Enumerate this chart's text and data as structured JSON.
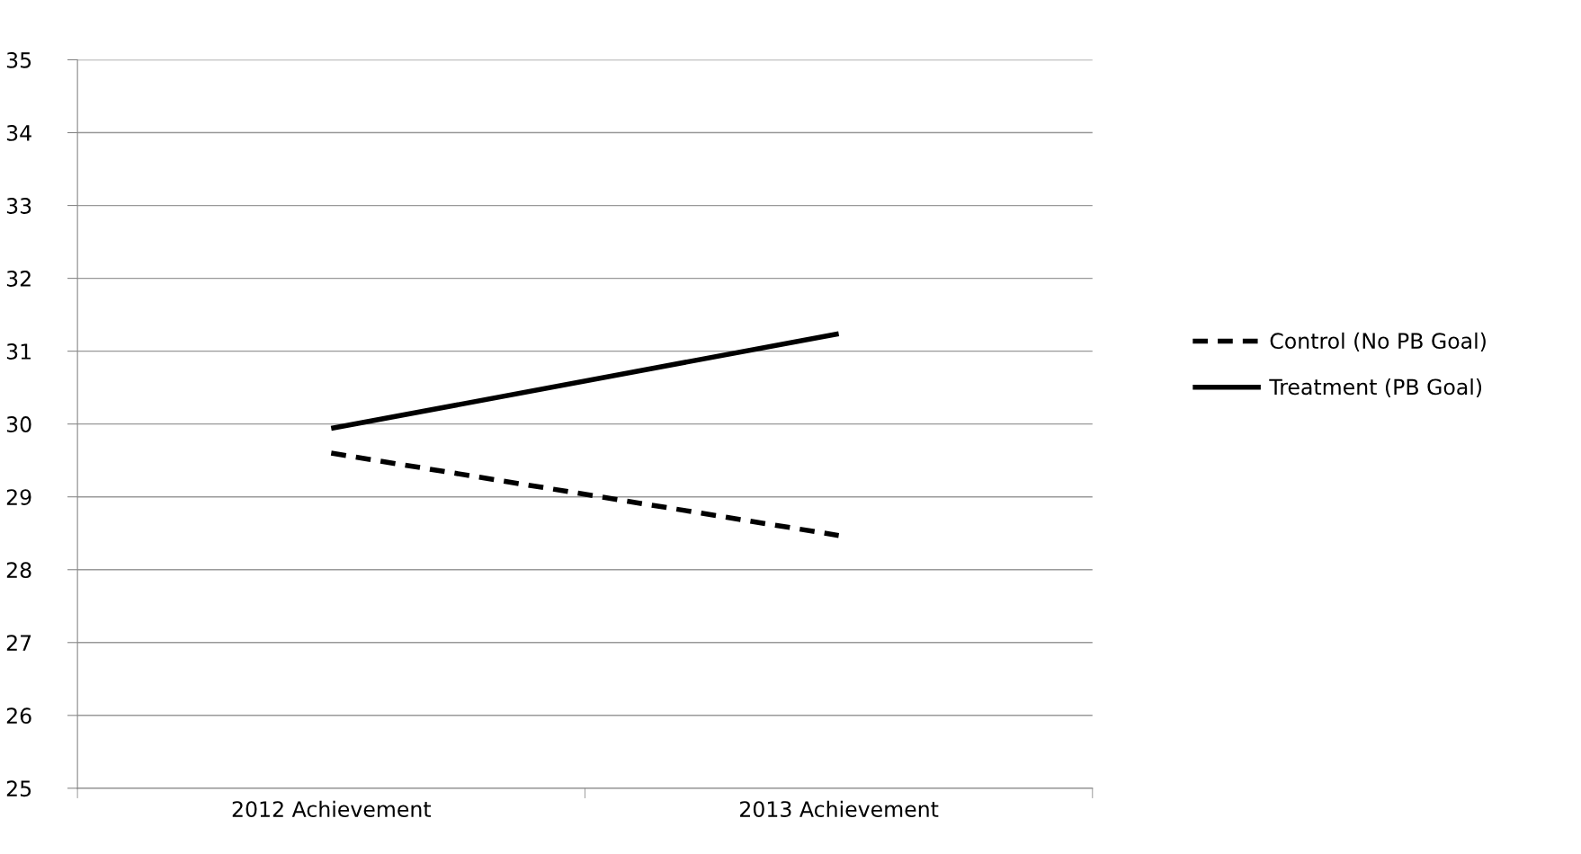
{
  "chart_data": {
    "type": "line",
    "categories": [
      "2012 Achievement",
      "2013 Achievement"
    ],
    "series": [
      {
        "name": "Control (No PB Goal)",
        "color": "#000000",
        "values": [
          29.6,
          28.47
        ],
        "line_style": "dashed"
      },
      {
        "name": "Treatment (PB Goal)",
        "color": "#000000",
        "values": [
          29.94,
          31.24
        ],
        "line_style": "solid"
      }
    ],
    "ylim": [
      25,
      35
    ],
    "yticks": [
      25,
      26,
      27,
      28,
      29,
      30,
      31,
      32,
      33,
      34,
      35
    ],
    "grid": "y",
    "legend": "right",
    "marker": "none"
  }
}
